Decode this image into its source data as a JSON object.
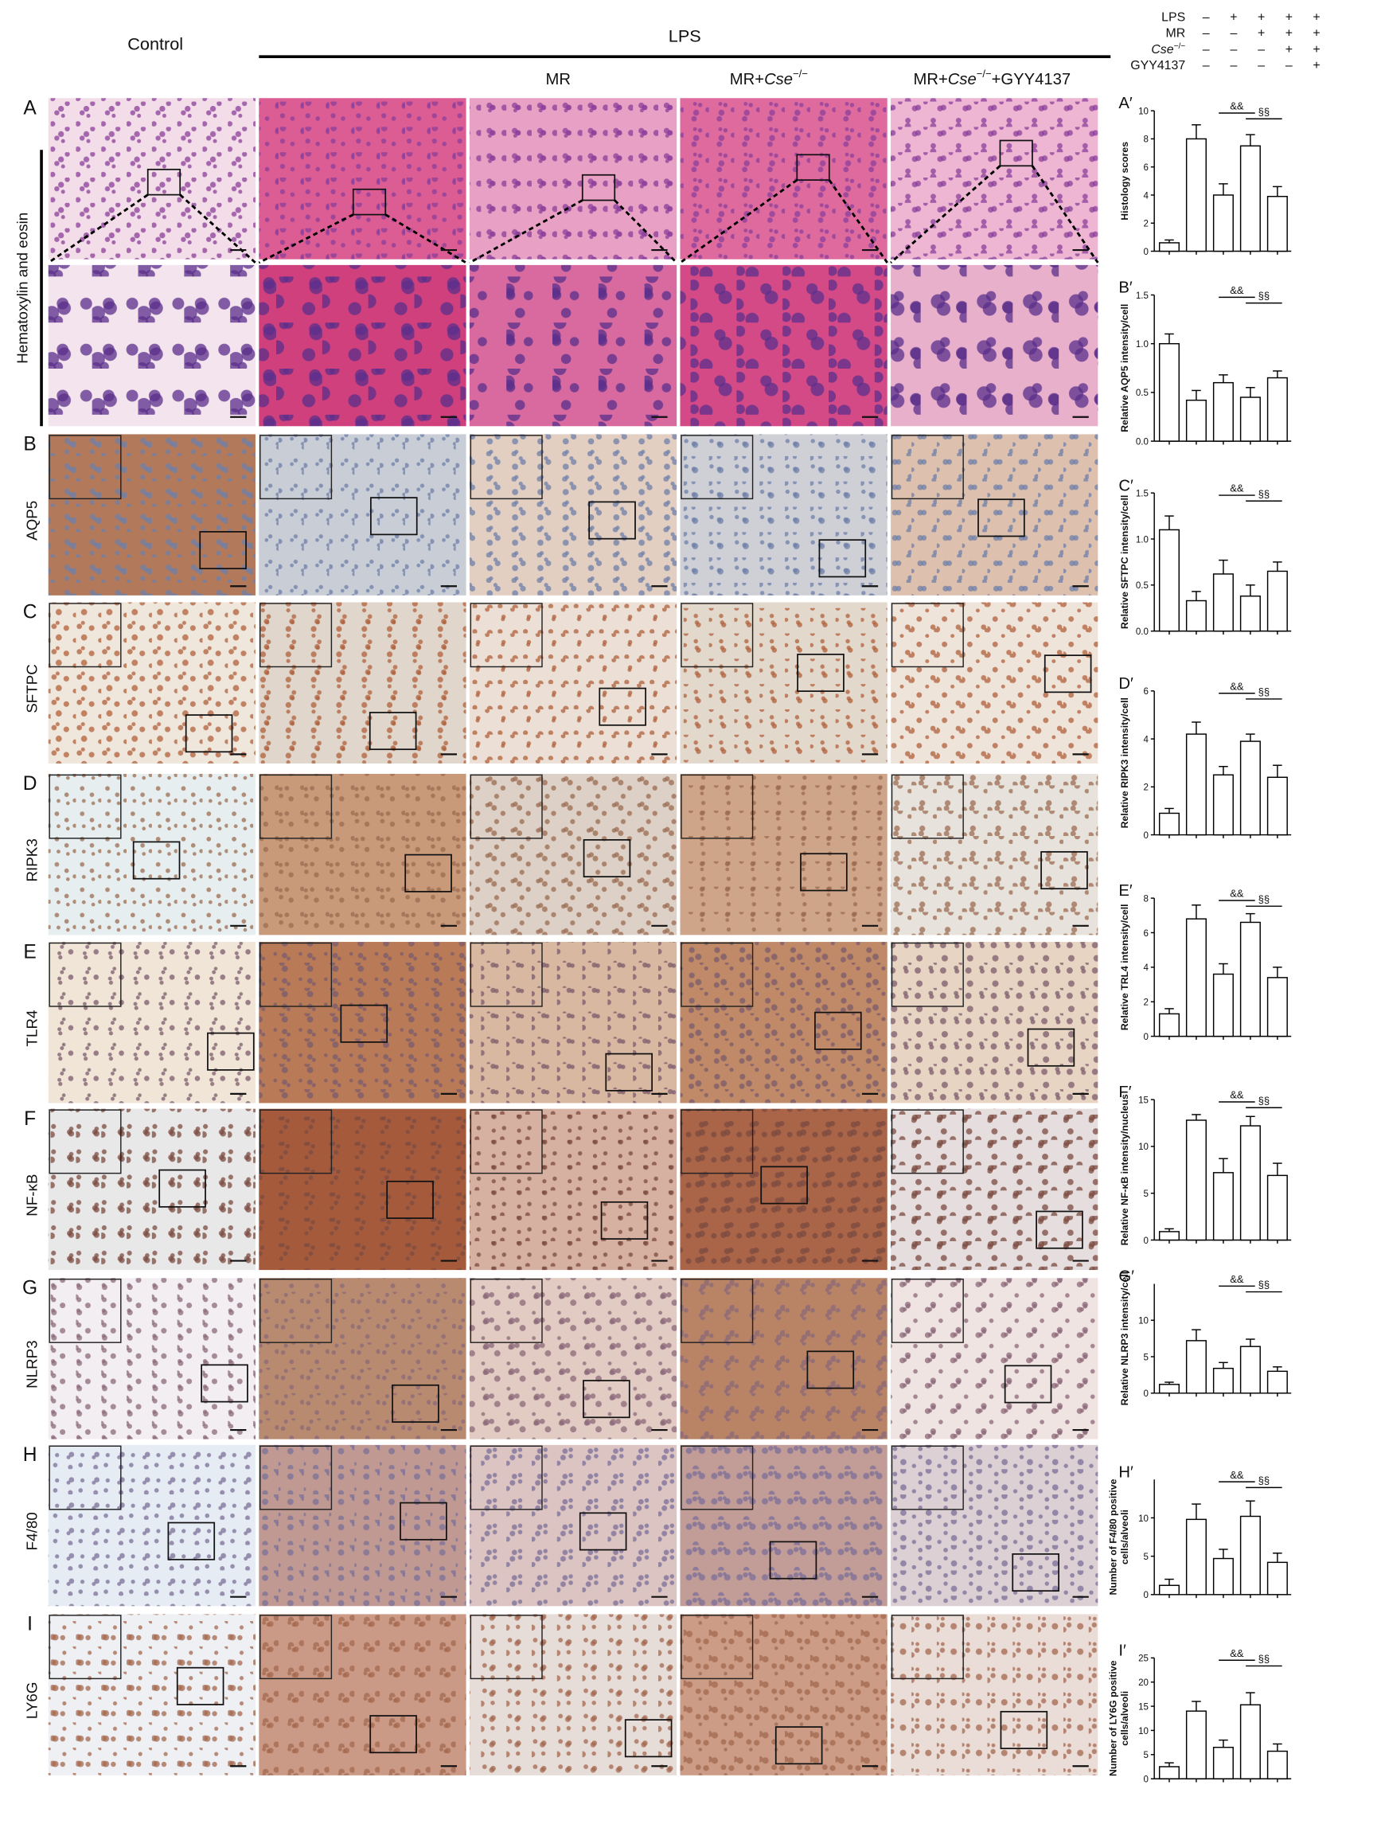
{
  "header": {
    "control": "Control",
    "lps": "LPS",
    "columns": [
      {
        "name": "MR"
      },
      {
        "prefix": "MR+",
        "gene": "Cse",
        "sup": "−/−"
      },
      {
        "prefix": "MR+",
        "gene": "Cse",
        "sup": "−/−",
        "suffix": "+GYY4137"
      }
    ]
  },
  "legend": {
    "rows": [
      {
        "label": "LPS",
        "signs": [
          "–",
          "+",
          "+",
          "+",
          "+"
        ]
      },
      {
        "label": "MR",
        "signs": [
          "–",
          "–",
          "+",
          "+",
          "+"
        ]
      },
      {
        "gene": "Cse",
        "sup": "−/−",
        "signs": [
          "–",
          "–",
          "–",
          "+",
          "+"
        ]
      },
      {
        "label": "GYY4137",
        "signs": [
          "–",
          "–",
          "–",
          "–",
          "+"
        ]
      }
    ]
  },
  "rows": [
    {
      "panel": "A",
      "stain": "Hematoxylin and eosin"
    },
    {
      "panel": "B",
      "stain": "AQP5"
    },
    {
      "panel": "C",
      "stain": "SFTPC"
    },
    {
      "panel": "D",
      "stain": "RIPK3"
    },
    {
      "panel": "E",
      "stain": "TLR4"
    },
    {
      "panel": "F",
      "stain": "NF-κB"
    },
    {
      "panel": "G",
      "stain": "NLRP3"
    },
    {
      "panel": "H",
      "stain": "F4/80"
    },
    {
      "panel": "I",
      "stain": "LY6G"
    }
  ],
  "chart_data": [
    {
      "type": "bar",
      "panel": "A′",
      "ylabel": [
        "Histology scores"
      ],
      "values": [
        0.6,
        8,
        4,
        7.5,
        3.9
      ],
      "errors": [
        0.2,
        1,
        0.8,
        0.8,
        0.7
      ],
      "ylim": [
        0,
        10
      ],
      "yticks": [
        0,
        2,
        4,
        6,
        8,
        10
      ],
      "color": "#ffffff",
      "annotations": [
        "&&",
        "§§"
      ]
    },
    {
      "type": "bar",
      "panel": "B′",
      "ylabel": [
        "Relative AQP5 intensity/cell"
      ],
      "values": [
        1,
        0.42,
        0.6,
        0.45,
        0.65
      ],
      "errors": [
        0.1,
        0.1,
        0.08,
        0.1,
        0.07
      ],
      "ylim": [
        0,
        1.5
      ],
      "yticks": [
        {
          "value": 0,
          "label": "0.0"
        },
        0.5,
        {
          "value": 1,
          "label": "1.0"
        },
        1.5
      ],
      "color": "#ffffff",
      "annotations": [
        "&&",
        "§§"
      ]
    },
    {
      "type": "bar",
      "panel": "C′",
      "ylabel": [
        "Relative SFTPC intensity/cell"
      ],
      "values": [
        1.1,
        0.33,
        0.62,
        0.38,
        0.65
      ],
      "errors": [
        0.15,
        0.1,
        0.15,
        0.12,
        0.1
      ],
      "ylim": [
        0,
        1.5
      ],
      "yticks": [
        {
          "value": 0,
          "label": "0.0"
        },
        0.5,
        {
          "value": 1,
          "label": "1.0"
        },
        1.5
      ],
      "color": "#ffffff",
      "annotations": [
        "&&",
        "§§"
      ]
    },
    {
      "type": "bar",
      "panel": "D′",
      "ylabel": [
        "Relative RIPK3 intensity/cell"
      ],
      "values": [
        0.9,
        4.2,
        2.5,
        3.9,
        2.4
      ],
      "errors": [
        0.2,
        0.5,
        0.35,
        0.3,
        0.5
      ],
      "ylim": [
        0,
        6
      ],
      "yticks": [
        0,
        2,
        4,
        6
      ],
      "color": "#ffffff",
      "annotations": [
        "&&",
        "§§"
      ]
    },
    {
      "type": "bar",
      "panel": "E′",
      "ylabel": [
        "Relative TRL4 intensity/cell"
      ],
      "values": [
        1.3,
        6.8,
        3.6,
        6.6,
        3.4
      ],
      "errors": [
        0.3,
        0.8,
        0.6,
        0.5,
        0.6
      ],
      "ylim": [
        0,
        8
      ],
      "yticks": [
        0,
        2,
        4,
        6,
        8
      ],
      "color": "#ffffff",
      "annotations": [
        "&&",
        "§§"
      ]
    },
    {
      "type": "bar",
      "panel": "F′",
      "ylabel": [
        "Relative NF-κB intensity/nucleus"
      ],
      "values": [
        0.9,
        12.8,
        7.2,
        12.2,
        6.9
      ],
      "errors": [
        0.3,
        0.6,
        1.5,
        1,
        1.3
      ],
      "ylim": [
        0,
        15
      ],
      "yticks": [
        0,
        5,
        10,
        15
      ],
      "color": "#ffffff",
      "annotations": [
        "&&",
        "§§"
      ]
    },
    {
      "type": "bar",
      "panel": "G′",
      "ylabel": [
        "Relative NLRP3 intensity/cell"
      ],
      "values": [
        1.2,
        7.2,
        3.4,
        6.4,
        3
      ],
      "errors": [
        0.3,
        1.5,
        0.8,
        1,
        0.6
      ],
      "ylim": [
        0,
        15
      ],
      "yticks": [
        0,
        5,
        10
      ],
      "color": "#ffffff",
      "annotations": [
        "&&",
        "§§"
      ]
    },
    {
      "type": "bar",
      "panel": "H′",
      "ylabel": [
        "Number of F4/80 positive",
        "cells/alveoli"
      ],
      "values": [
        1.2,
        9.8,
        4.7,
        10.2,
        4.2
      ],
      "errors": [
        0.8,
        2,
        1.2,
        2,
        1.2
      ],
      "ylim": [
        0,
        15
      ],
      "yticks": [
        0,
        5,
        10
      ],
      "color": "#ffffff",
      "annotations": [
        "&&",
        "§§"
      ]
    },
    {
      "type": "bar",
      "panel": "I′",
      "ylabel": [
        "Number of LY6G positive",
        "cells/alveoli"
      ],
      "values": [
        2.5,
        14,
        6.5,
        15.3,
        5.7
      ],
      "errors": [
        0.8,
        2,
        1.5,
        2.5,
        1.5
      ],
      "ylim": [
        0,
        25
      ],
      "yticks": [
        0,
        5,
        10,
        15,
        20,
        25
      ],
      "color": "#ffffff",
      "annotations": [
        "&&",
        "§§"
      ]
    }
  ]
}
